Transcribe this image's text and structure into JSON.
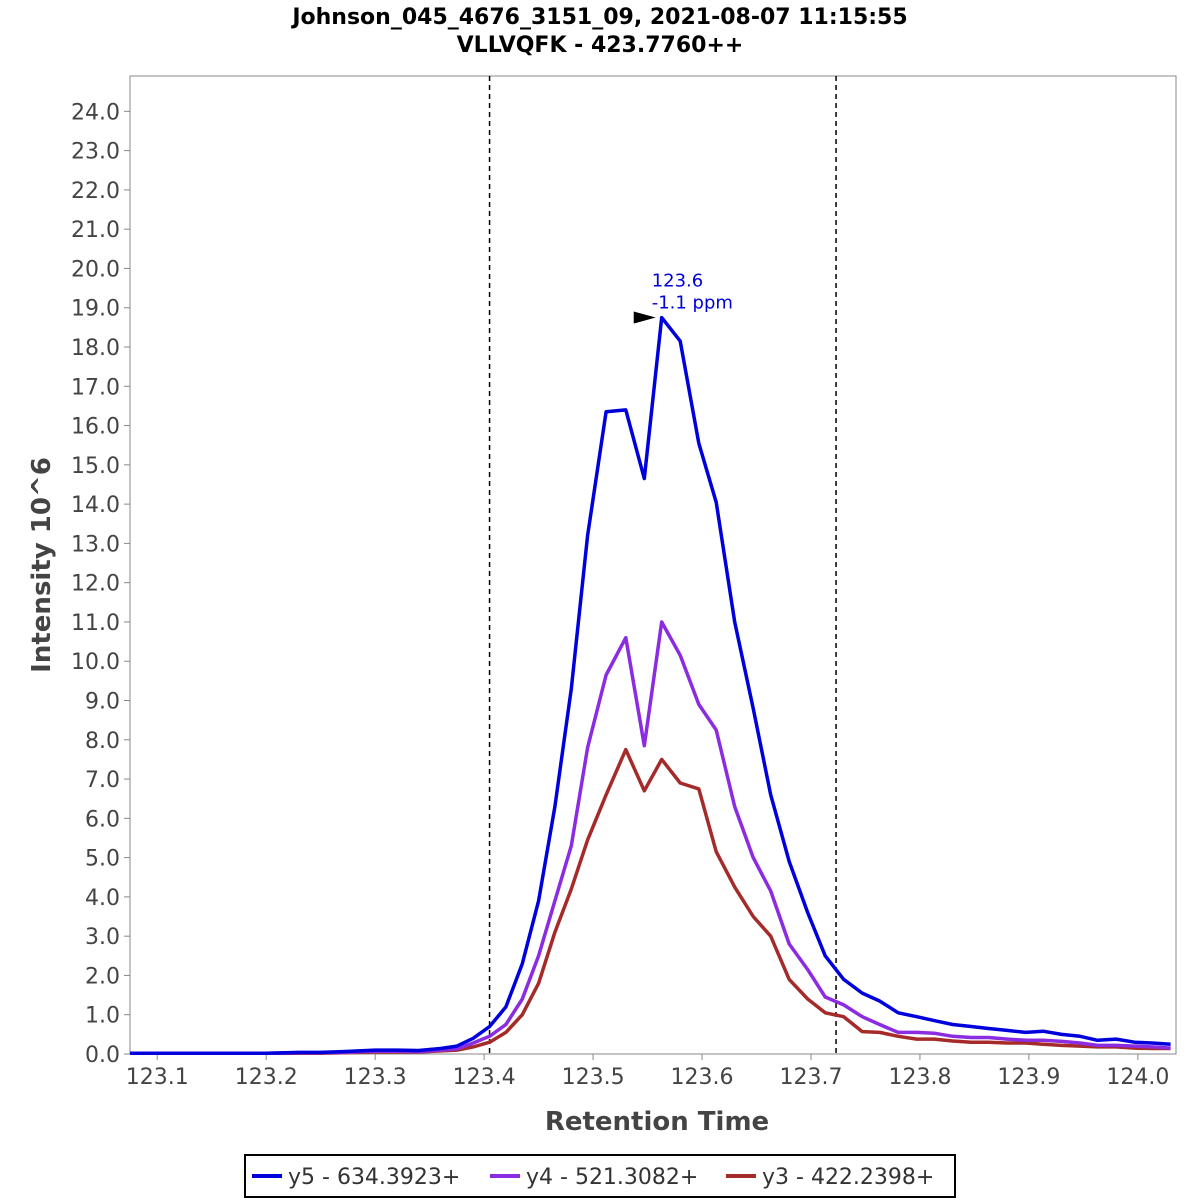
{
  "chart_data": {
    "type": "line",
    "title": "Johnson_045_4676_3151_09, 2021-08-07 11:15:55",
    "subtitle": "VLLVQFK - 423.7760++",
    "xlabel": "Retention Time",
    "ylabel": "Intensity 10^6",
    "xlim": [
      123.075,
      124.035
    ],
    "ylim": [
      0,
      24.9
    ],
    "xticks": [
      123.1,
      123.2,
      123.3,
      123.4,
      123.5,
      123.6,
      123.7,
      123.8,
      123.9,
      124.0
    ],
    "xtick_labels": [
      "123.1",
      "123.2",
      "123.3",
      "123.4",
      "123.5",
      "123.6",
      "123.7",
      "123.8",
      "123.9",
      "124.0"
    ],
    "yticks": [
      0,
      1,
      2,
      3,
      4,
      5,
      6,
      7,
      8,
      9,
      10,
      11,
      12,
      13,
      14,
      15,
      16,
      17,
      18,
      19,
      20,
      21,
      22,
      23,
      24
    ],
    "ytick_labels": [
      "0.0",
      "1.0",
      "2.0",
      "3.0",
      "4.0",
      "5.0",
      "6.0",
      "7.0",
      "8.0",
      "9.0",
      "10.0",
      "11.0",
      "12.0",
      "13.0",
      "14.0",
      "15.0",
      "16.0",
      "17.0",
      "18.0",
      "19.0",
      "20.0",
      "21.0",
      "22.0",
      "23.0",
      "24.0"
    ],
    "boundaries": [
      123.405,
      123.723
    ],
    "grid": false,
    "legend_position": "bottom-center",
    "annotation": {
      "x": 123.563,
      "y": 18.75,
      "color": "#0000dd",
      "line1": "123.6",
      "line2": "-1.1 ppm"
    },
    "series": [
      {
        "name": "y5 - 634.3923+",
        "color": "#0000dd",
        "x": [
          123.075,
          123.1,
          123.15,
          123.2,
          123.23,
          123.25,
          123.27,
          123.3,
          123.32,
          123.34,
          123.36,
          123.375,
          123.39,
          123.405,
          123.42,
          123.435,
          123.45,
          123.465,
          123.48,
          123.495,
          123.512,
          123.53,
          123.547,
          123.563,
          123.58,
          123.597,
          123.613,
          123.63,
          123.647,
          123.663,
          123.68,
          123.697,
          123.713,
          123.73,
          123.747,
          123.763,
          123.78,
          123.797,
          123.813,
          123.83,
          123.847,
          123.863,
          123.88,
          123.897,
          123.913,
          123.93,
          123.947,
          123.963,
          123.98,
          123.997,
          124.013,
          124.03
        ],
        "y": [
          0.02,
          0.02,
          0.02,
          0.02,
          0.04,
          0.04,
          0.06,
          0.1,
          0.1,
          0.09,
          0.14,
          0.2,
          0.4,
          0.7,
          1.2,
          2.3,
          3.9,
          6.3,
          9.3,
          13.2,
          16.35,
          16.4,
          14.65,
          18.75,
          18.15,
          15.55,
          14.05,
          11.0,
          8.8,
          6.6,
          4.9,
          3.6,
          2.5,
          1.9,
          1.55,
          1.35,
          1.05,
          0.95,
          0.85,
          0.75,
          0.7,
          0.65,
          0.6,
          0.55,
          0.58,
          0.5,
          0.45,
          0.35,
          0.38,
          0.3,
          0.28,
          0.25
        ]
      },
      {
        "name": "y4 - 521.3082+",
        "color": "#8b2be2",
        "x": [
          123.075,
          123.1,
          123.15,
          123.2,
          123.23,
          123.25,
          123.27,
          123.3,
          123.32,
          123.34,
          123.36,
          123.375,
          123.39,
          123.405,
          123.42,
          123.435,
          123.45,
          123.465,
          123.48,
          123.495,
          123.512,
          123.53,
          123.547,
          123.563,
          123.58,
          123.597,
          123.613,
          123.63,
          123.647,
          123.663,
          123.68,
          123.697,
          123.713,
          123.73,
          123.747,
          123.763,
          123.78,
          123.797,
          123.813,
          123.83,
          123.847,
          123.863,
          123.88,
          123.897,
          123.913,
          123.93,
          123.947,
          123.963,
          123.98,
          123.997,
          124.013,
          124.03
        ],
        "y": [
          0.02,
          0.02,
          0.02,
          0.02,
          0.03,
          0.03,
          0.04,
          0.07,
          0.07,
          0.06,
          0.1,
          0.13,
          0.28,
          0.45,
          0.75,
          1.4,
          2.5,
          3.9,
          5.3,
          7.8,
          9.65,
          10.6,
          7.85,
          11.0,
          10.15,
          8.9,
          8.25,
          6.3,
          5.0,
          4.15,
          2.8,
          2.15,
          1.45,
          1.25,
          0.95,
          0.75,
          0.55,
          0.55,
          0.53,
          0.45,
          0.42,
          0.42,
          0.38,
          0.35,
          0.35,
          0.32,
          0.28,
          0.22,
          0.22,
          0.2,
          0.18,
          0.15
        ]
      },
      {
        "name": "y3 - 422.2398+",
        "color": "#a52a2a",
        "x": [
          123.075,
          123.1,
          123.15,
          123.2,
          123.23,
          123.25,
          123.27,
          123.3,
          123.32,
          123.34,
          123.36,
          123.375,
          123.39,
          123.405,
          123.42,
          123.435,
          123.45,
          123.465,
          123.48,
          123.495,
          123.512,
          123.53,
          123.547,
          123.563,
          123.58,
          123.597,
          123.613,
          123.63,
          123.647,
          123.663,
          123.68,
          123.697,
          123.713,
          123.73,
          123.747,
          123.763,
          123.78,
          123.797,
          123.813,
          123.83,
          123.847,
          123.863,
          123.88,
          123.897,
          123.913,
          123.93,
          123.947,
          123.963,
          123.98,
          123.997,
          124.013,
          124.03
        ],
        "y": [
          0.02,
          0.02,
          0.02,
          0.02,
          0.02,
          0.02,
          0.03,
          0.05,
          0.05,
          0.05,
          0.08,
          0.1,
          0.18,
          0.3,
          0.55,
          1.0,
          1.8,
          3.1,
          4.2,
          5.45,
          6.6,
          7.75,
          6.7,
          7.5,
          6.9,
          6.75,
          5.15,
          4.25,
          3.5,
          3.0,
          1.9,
          1.4,
          1.05,
          0.95,
          0.57,
          0.55,
          0.45,
          0.38,
          0.38,
          0.33,
          0.3,
          0.3,
          0.28,
          0.28,
          0.25,
          0.22,
          0.2,
          0.18,
          0.18,
          0.15,
          0.14,
          0.14
        ]
      }
    ]
  }
}
